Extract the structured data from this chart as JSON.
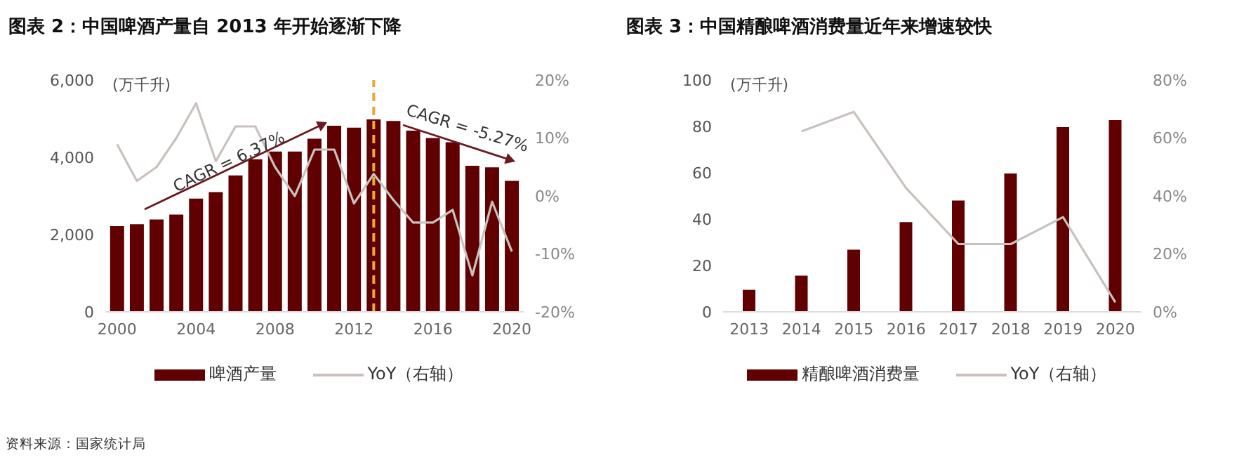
{
  "chart_data": [
    {
      "type": "bar",
      "title": "图表 2：中国啤酒产量自 2013 年开始逐渐下降",
      "ylabel": "(万千升)",
      "x": [
        2000,
        2001,
        2002,
        2003,
        2004,
        2005,
        2006,
        2007,
        2008,
        2009,
        2010,
        2011,
        2012,
        2013,
        2014,
        2015,
        2016,
        2017,
        2018,
        2019,
        2020
      ],
      "xlim": [
        1999.4,
        2020.6
      ],
      "xticks": [
        2000,
        2004,
        2008,
        2012,
        2016,
        2020
      ],
      "series": [
        {
          "name": "啤酒产量",
          "color": "#600000",
          "values": [
            2220,
            2270,
            2390,
            2520,
            2930,
            3100,
            3530,
            3950,
            4150,
            4150,
            4480,
            4820,
            4770,
            4980,
            4940,
            4690,
            4500,
            4390,
            3780,
            3740,
            3390
          ]
        },
        {
          "name": "YoY（右轴）",
          "type": "line",
          "axis": "y2",
          "color": "#c9c1bd",
          "values": [
            8.9,
            2.6,
            5,
            10,
            16,
            6,
            12,
            12,
            5,
            0,
            8,
            8,
            -1.3,
            3.8,
            -0.7,
            -4.6,
            -4.6,
            -2.4,
            -13.7,
            -1,
            -9.6
          ]
        }
      ],
      "ylim": [
        0,
        6000
      ],
      "yticks": [
        0,
        {
          "value": 2000,
          "label": "2,000"
        },
        {
          "value": 4000,
          "label": "4,000"
        },
        {
          "value": 6000,
          "label": "6,000"
        }
      ],
      "y2lim": [
        -20,
        20
      ],
      "y2ticks": [
        {
          "value": -20,
          "label": "-20%"
        },
        {
          "value": -10,
          "label": "-10%"
        },
        {
          "value": 0,
          "label": "0%"
        },
        {
          "value": 10,
          "label": "10%"
        },
        {
          "value": 20,
          "label": "20%"
        }
      ],
      "ref_lines": [
        {
          "axis": "x",
          "value": 2013,
          "color": "#e8a83a",
          "line_style": "dashed"
        }
      ],
      "annotations": [
        "CAGR = 6.37%",
        "CAGR = -5.27%",
        "资料来源：国家统计局"
      ],
      "legend": "bottom",
      "grid": false
    },
    {
      "type": "bar",
      "title": "图表 3：中国精酿啤酒消费量近年来增速较快",
      "ylabel": "(万千升)",
      "categories": [
        "2013",
        "2014",
        "2015",
        "2016",
        "2017",
        "2018",
        "2019",
        "2020"
      ],
      "series": [
        {
          "name": "精酿啤酒消费量",
          "color": "#600000",
          "values": [
            9.5,
            15.6,
            26.8,
            38.7,
            48,
            59.7,
            79.7,
            82.7
          ]
        },
        {
          "name": "YoY（右轴）",
          "type": "line",
          "axis": "y2",
          "color": "#c9c1bd",
          "values": [
            null,
            62.3,
            69,
            42.7,
            23.4,
            23.4,
            32.7,
            3.3
          ]
        }
      ],
      "ylim": [
        0,
        100
      ],
      "yticks": [
        0,
        20,
        40,
        60,
        80,
        100
      ],
      "y2lim": [
        0,
        80
      ],
      "y2ticks": [
        {
          "value": 0,
          "label": "0%"
        },
        {
          "value": 20,
          "label": "20%"
        },
        {
          "value": 40,
          "label": "40%"
        },
        {
          "value": 60,
          "label": "60%"
        },
        {
          "value": 80,
          "label": "80%"
        }
      ],
      "legend": "bottom",
      "grid": false
    }
  ]
}
